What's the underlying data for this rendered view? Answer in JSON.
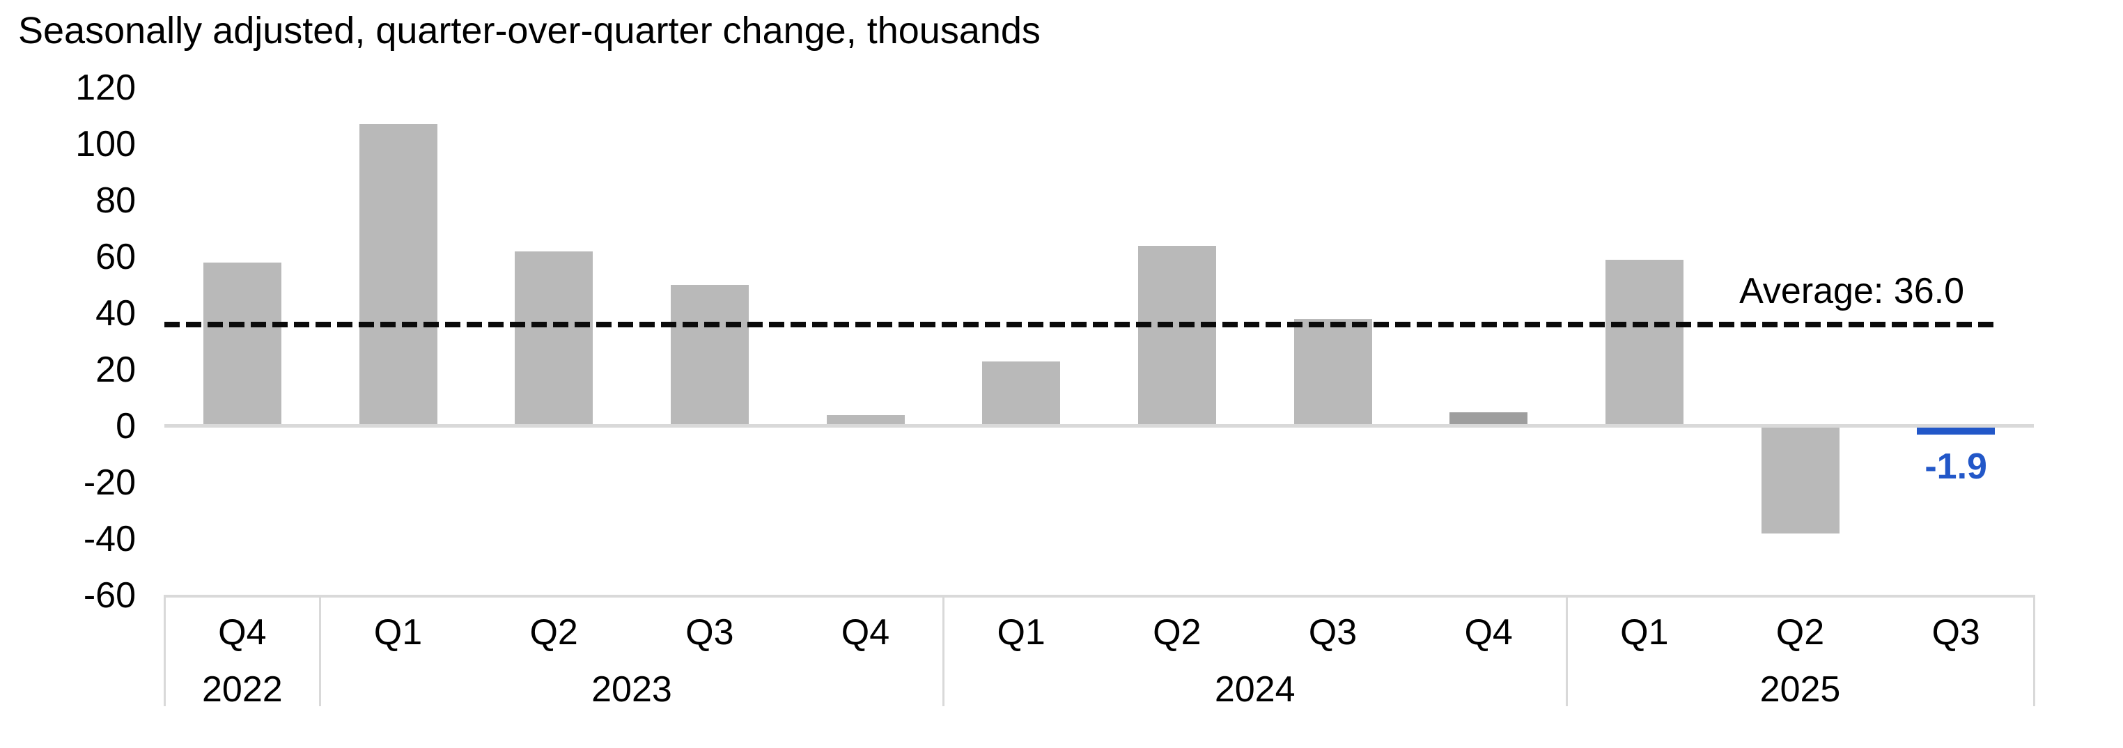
{
  "chart_data": {
    "type": "bar",
    "title": "Seasonally adjusted, quarter-over-quarter change, thousands",
    "quarters": [
      "Q4",
      "Q1",
      "Q2",
      "Q3",
      "Q4",
      "Q1",
      "Q2",
      "Q3",
      "Q4",
      "Q1",
      "Q2",
      "Q3"
    ],
    "year_groups": [
      {
        "label": "2022",
        "count": 1
      },
      {
        "label": "2023",
        "count": 4
      },
      {
        "label": "2024",
        "count": 4
      },
      {
        "label": "2025",
        "count": 3
      }
    ],
    "values": [
      58,
      107,
      62,
      50,
      4,
      23,
      64,
      38,
      5,
      59,
      -38,
      -1.9
    ],
    "dark_bar_index": 8,
    "final_point": {
      "index": 11,
      "style": "dash",
      "value": -1.9,
      "label": "-1.9"
    },
    "average": {
      "value": 36.0,
      "label": "Average: 36.0"
    },
    "yticks": [
      120,
      100,
      80,
      60,
      40,
      20,
      0,
      -20,
      -40,
      -60
    ],
    "ylim": [
      -60,
      120
    ],
    "grid": "off",
    "legend": "none",
    "colors": {
      "bar": "#b9b9b9",
      "bar_dark": "#9e9e9e",
      "axis": "#d9d9d9",
      "average_line": "#0b0b0b",
      "highlight_blue": "#2257c8",
      "text": "#000000"
    }
  }
}
